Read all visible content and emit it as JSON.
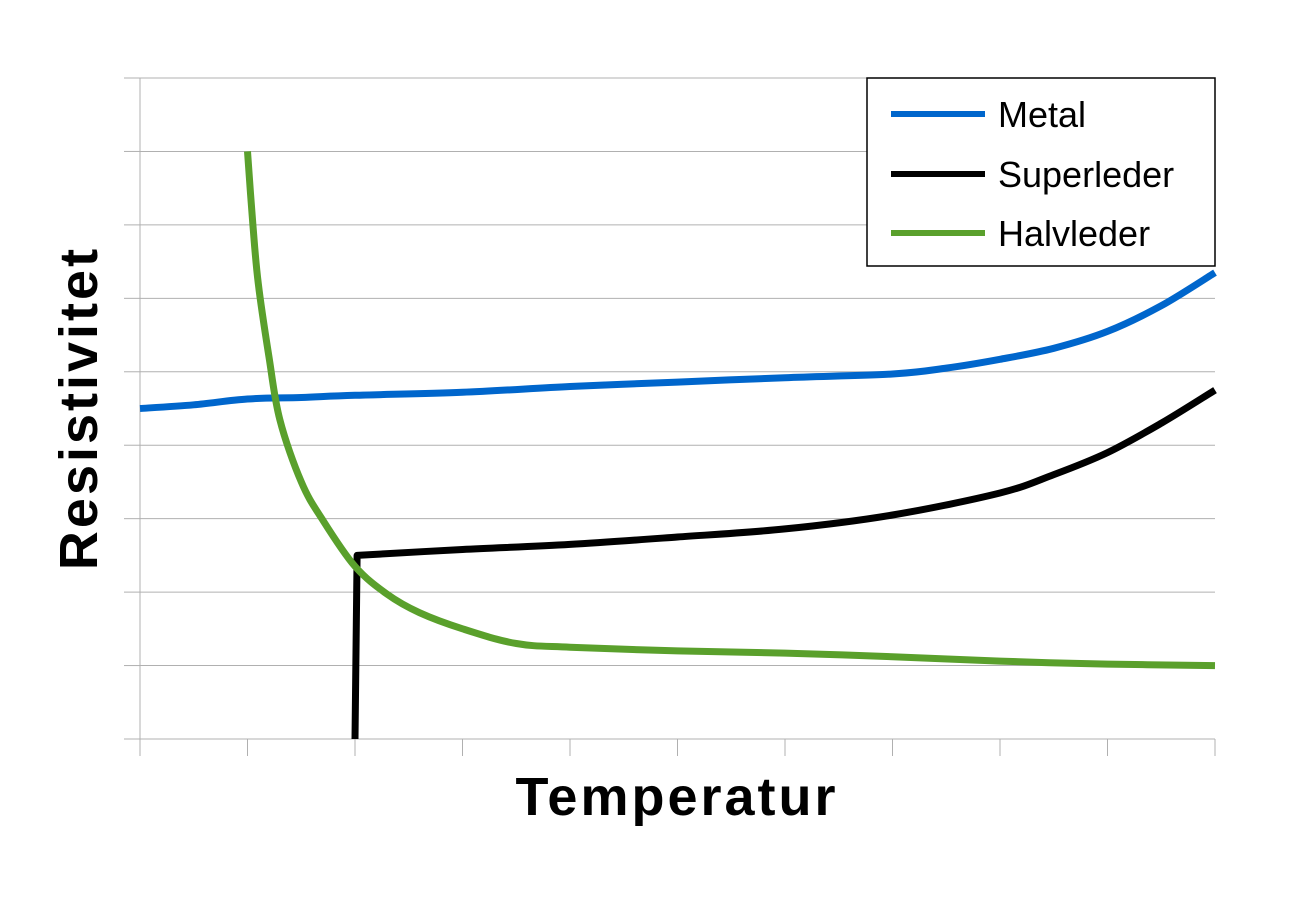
{
  "chart_data": {
    "type": "line",
    "xlabel": "Temperatur",
    "ylabel": "Resistivitet",
    "xlim": [
      0,
      10
    ],
    "ylim": [
      0,
      9
    ],
    "grid": true,
    "legend_position": "top-right",
    "x_ticks": [
      0,
      1,
      2,
      3,
      4,
      5,
      6,
      7,
      8,
      9,
      10
    ],
    "y_ticks": [
      0,
      1,
      2,
      3,
      4,
      5,
      6,
      7,
      8,
      9
    ],
    "series": [
      {
        "name": "Metal",
        "color": "#0066cc",
        "x": [
          0,
          0.5,
          1,
          1.5,
          2,
          3,
          4,
          5,
          6,
          7,
          7.5,
          8,
          8.5,
          9,
          9.5,
          10
        ],
        "y": [
          4.5,
          4.55,
          4.63,
          4.65,
          4.68,
          4.72,
          4.8,
          4.86,
          4.92,
          4.97,
          5.05,
          5.17,
          5.32,
          5.55,
          5.9,
          6.35
        ]
      },
      {
        "name": "Superleder",
        "color": "#000000",
        "x": [
          2,
          2.02,
          3,
          4,
          5,
          6,
          7,
          8,
          8.5,
          9,
          9.5,
          10
        ],
        "y": [
          0,
          2.5,
          2.58,
          2.65,
          2.75,
          2.86,
          3.05,
          3.35,
          3.6,
          3.9,
          4.3,
          4.75
        ]
      },
      {
        "name": "Halvleder",
        "color": "#5aa02c",
        "x": [
          1,
          1.05,
          1.1,
          1.2,
          1.3,
          1.5,
          1.7,
          2,
          2.3,
          2.6,
          3,
          3.5,
          4,
          5,
          6,
          7,
          8,
          9,
          10
        ],
        "y": [
          8,
          7.0,
          6.2,
          5.2,
          4.35,
          3.5,
          2.98,
          2.35,
          1.97,
          1.72,
          1.5,
          1.3,
          1.25,
          1.2,
          1.17,
          1.12,
          1.06,
          1.02,
          1.0
        ]
      }
    ]
  }
}
